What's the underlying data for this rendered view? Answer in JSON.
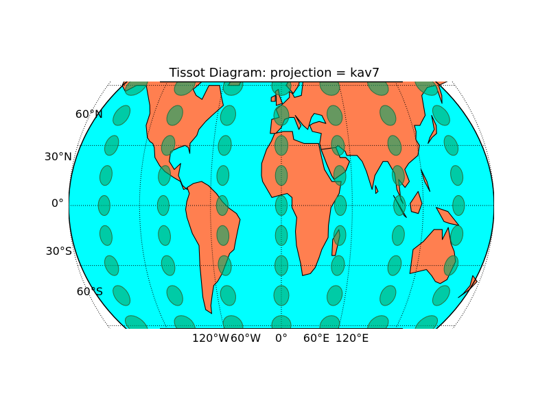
{
  "title": "Tissot Diagram: projection = kav7",
  "colors": {
    "ocean": "#00ffff",
    "land": "#ff7f50",
    "tissot": "#00a86b",
    "grid": "#000000"
  },
  "lat_labels": [
    "60°N",
    "30°N",
    "0°",
    "30°S",
    "60°S"
  ],
  "lon_labels": [
    "120°W",
    "60°W",
    "0°",
    "60°E",
    "120°E"
  ],
  "graticule": {
    "parallels": [
      -60,
      -30,
      0,
      30,
      60
    ],
    "meridians": [
      -180,
      -120,
      -60,
      0,
      60,
      120,
      180
    ]
  },
  "tissot": {
    "lats": [
      -60,
      -45,
      -30,
      -15,
      0,
      15,
      30,
      45,
      60
    ],
    "lons": [
      -150,
      -100,
      -50,
      0,
      50,
      100,
      150
    ],
    "radius_deg": 5
  }
}
